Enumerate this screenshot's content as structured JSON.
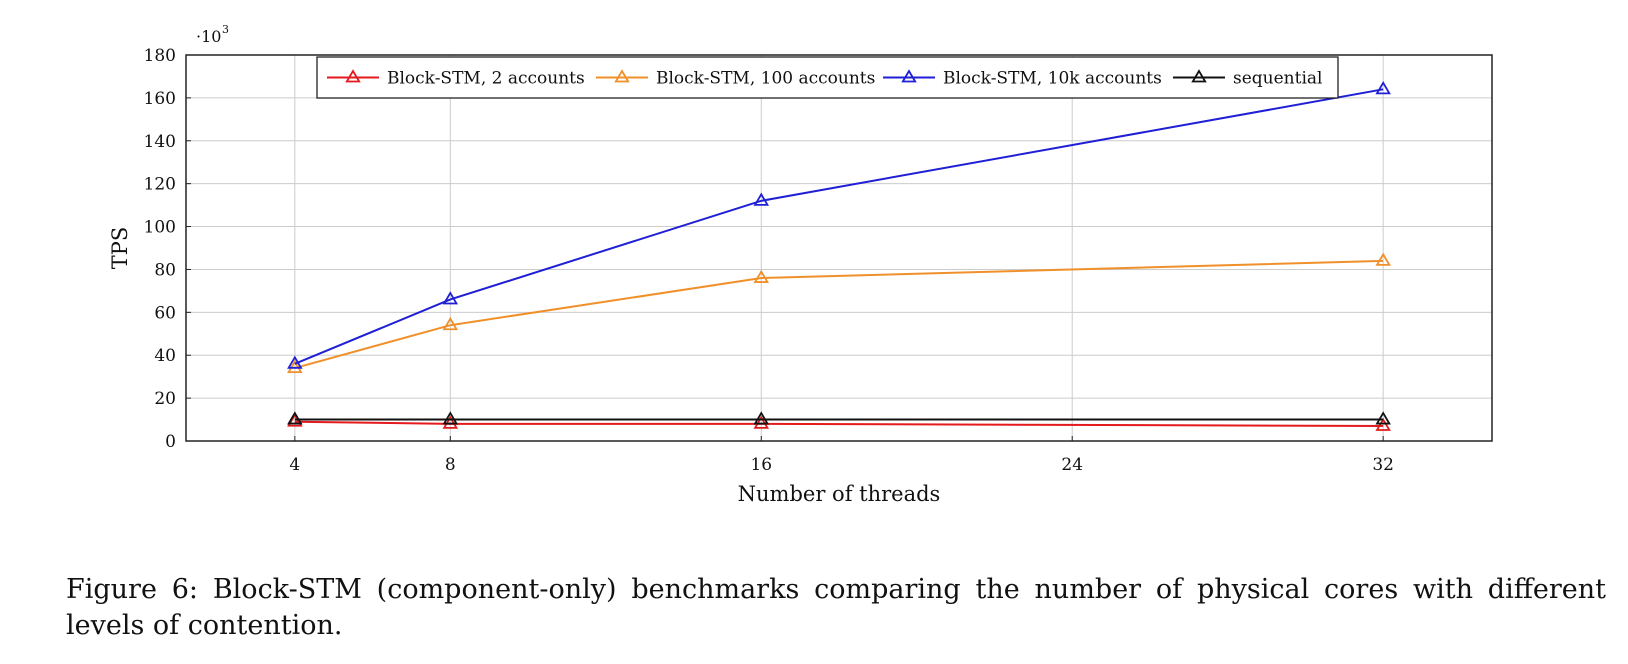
{
  "chart_data": {
    "type": "line",
    "title": "",
    "xlabel": "Number of threads",
    "ylabel": "TPS",
    "y_multiplier_label": "·10",
    "y_multiplier_exponent": "3",
    "x": [
      4,
      8,
      16,
      32
    ],
    "xticks": [
      "4",
      "8",
      "16",
      "24",
      "32"
    ],
    "xtick_values": [
      4,
      8,
      16,
      24,
      32
    ],
    "xlim": [
      1.2,
      34.8
    ],
    "yticks": [
      "0",
      "20",
      "40",
      "60",
      "80",
      "100",
      "120",
      "140",
      "160",
      "180"
    ],
    "ylim": [
      0,
      180
    ],
    "grid": true,
    "legend_position": "top-center",
    "series": [
      {
        "name": "Block-STM, 2 accounts",
        "color": "#e41a1c",
        "values": [
          9,
          8,
          8,
          7
        ]
      },
      {
        "name": "Block-STM, 100 accounts",
        "color": "#f0902a",
        "values": [
          34,
          54,
          76,
          84
        ]
      },
      {
        "name": "Block-STM, 10k accounts",
        "color": "#1f1fd6",
        "values": [
          36,
          66,
          112,
          164
        ]
      },
      {
        "name": "sequential",
        "color": "#111111",
        "values": [
          10,
          10,
          10,
          10
        ]
      }
    ]
  },
  "caption": "Figure 6: Block-STM (component-only) benchmarks comparing the number of physical cores with different levels of contention."
}
